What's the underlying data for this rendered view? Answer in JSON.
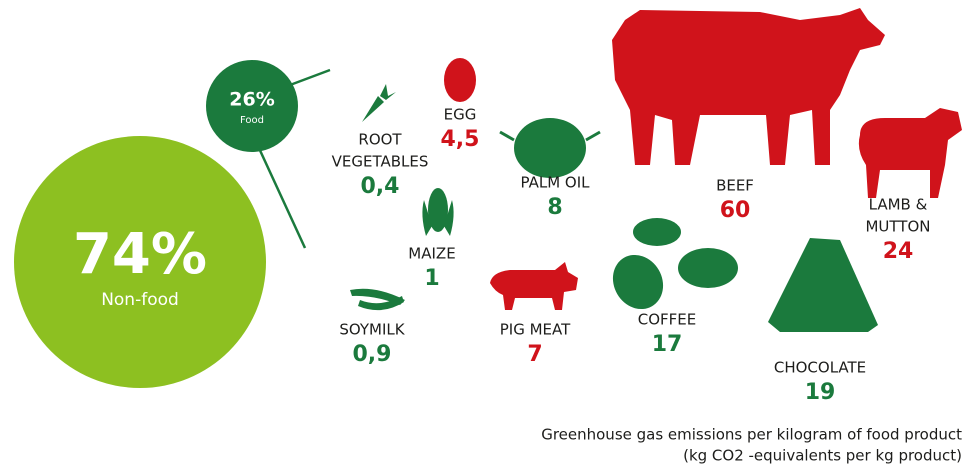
{
  "shares": {
    "food": {
      "percent": "26%",
      "label": "Food",
      "color": "#1b7a3d"
    },
    "non_food": {
      "percent": "74%",
      "label": "Non-food",
      "color": "#8dc021"
    }
  },
  "items": [
    {
      "label_lines": [
        "ROOT",
        "VEGETABLES"
      ],
      "value": "0,4",
      "color": "#1b7a3d"
    },
    {
      "label_lines": [
        "EGG"
      ],
      "value": "4,5",
      "color": "#d0131b"
    },
    {
      "label_lines": [
        "PALM OIL"
      ],
      "value": "8",
      "color": "#1b7a3d"
    },
    {
      "label_lines": [
        "BEEF"
      ],
      "value": "60",
      "color": "#d0131b"
    },
    {
      "label_lines": [
        "LAMB &",
        "MUTTON"
      ],
      "value": "24",
      "color": "#d0131b"
    },
    {
      "label_lines": [
        "MAIZE"
      ],
      "value": "1",
      "color": "#1b7a3d"
    },
    {
      "label_lines": [
        "SOYMILK"
      ],
      "value": "0,9",
      "color": "#1b7a3d"
    },
    {
      "label_lines": [
        "PIG MEAT"
      ],
      "value": "7",
      "color": "#d0131b"
    },
    {
      "label_lines": [
        "COFFEE"
      ],
      "value": "17",
      "color": "#1b7a3d"
    },
    {
      "label_lines": [
        "CHOCOLATE"
      ],
      "value": "19",
      "color": "#1b7a3d"
    }
  ],
  "footnote": [
    "Greenhouse gas emissions per kilogram of food product",
    "(kg CO2 -equivalents per kg product)"
  ]
}
